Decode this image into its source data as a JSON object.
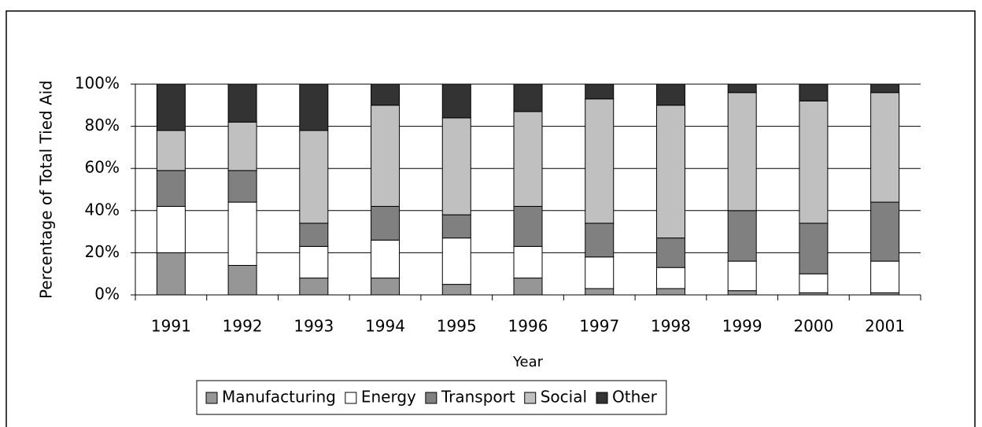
{
  "chart_data": {
    "type": "stacked_bar",
    "y_axis_label": "Percentage of Total Tied Aid",
    "x_axis_label": "Year",
    "categories": [
      "1991",
      "1992",
      "1993",
      "1994",
      "1995",
      "1996",
      "1997",
      "1998",
      "1999",
      "2000",
      "2001"
    ],
    "series": [
      {
        "name": "Manufacturing",
        "color": "#969696",
        "values": [
          20,
          14,
          8,
          8,
          5,
          8,
          3,
          3,
          2,
          1,
          1
        ]
      },
      {
        "name": "Energy",
        "color": "#ffffff",
        "values": [
          22,
          30,
          15,
          18,
          22,
          15,
          15,
          10,
          14,
          9,
          15
        ]
      },
      {
        "name": "Transport",
        "color": "#808080",
        "values": [
          17,
          15,
          11,
          16,
          11,
          19,
          16,
          14,
          24,
          24,
          28
        ]
      },
      {
        "name": "Social",
        "color": "#c0c0c0",
        "values": [
          19,
          23,
          44,
          48,
          46,
          45,
          59,
          63,
          56,
          58,
          52
        ]
      },
      {
        "name": "Other",
        "color": "#333333",
        "values": [
          22,
          18,
          22,
          10,
          16,
          13,
          7,
          10,
          4,
          8,
          4
        ]
      }
    ],
    "ylim": [
      0,
      100
    ],
    "yticks": [
      {
        "value": 0,
        "label": "0%"
      },
      {
        "value": 20,
        "label": "20%"
      },
      {
        "value": 40,
        "label": "40%"
      },
      {
        "value": 60,
        "label": "60%"
      },
      {
        "value": 80,
        "label": "80%"
      },
      {
        "value": 100,
        "label": "100%"
      }
    ],
    "grid": true,
    "legend": "bottom"
  }
}
